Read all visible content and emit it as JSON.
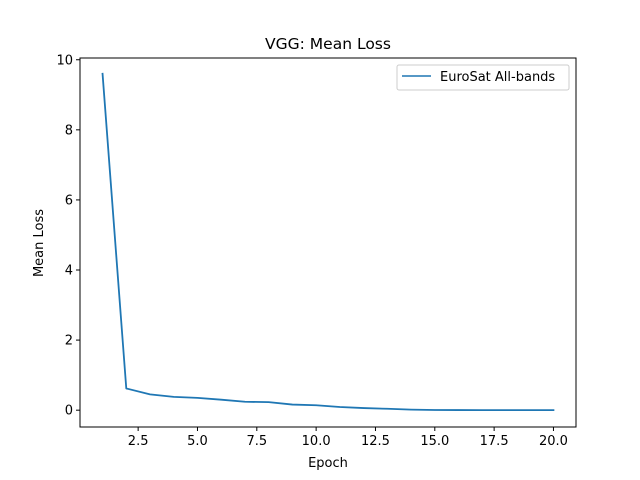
{
  "chart_data": {
    "type": "line",
    "title": "VGG: Mean Loss",
    "xlabel": "Epoch",
    "ylabel": "Mean Loss",
    "xlim": [
      0.05,
      20.95
    ],
    "ylim": [
      -0.48,
      10.05
    ],
    "xticks": [
      2.5,
      5.0,
      7.5,
      10.0,
      12.5,
      15.0,
      17.5,
      20.0
    ],
    "xtick_labels": [
      "2.5",
      "5.0",
      "7.5",
      "10.0",
      "12.5",
      "15.0",
      "17.5",
      "20.0"
    ],
    "yticks": [
      0,
      2,
      4,
      6,
      8,
      10
    ],
    "ytick_labels": [
      "0",
      "2",
      "4",
      "6",
      "8",
      "10"
    ],
    "grid": false,
    "legend_position": "top-right",
    "series": [
      {
        "name": "EuroSat All-bands",
        "color": "#1f77b4",
        "x": [
          1,
          2,
          3,
          4,
          5,
          6,
          7,
          8,
          9,
          10,
          11,
          12,
          13,
          14,
          15,
          16,
          17,
          18,
          19,
          20
        ],
        "y": [
          9.6,
          0.62,
          0.45,
          0.38,
          0.35,
          0.3,
          0.24,
          0.23,
          0.16,
          0.14,
          0.09,
          0.06,
          0.04,
          0.015,
          0.005,
          0.003,
          0.002,
          0.002,
          0.001,
          0.001
        ]
      }
    ]
  }
}
